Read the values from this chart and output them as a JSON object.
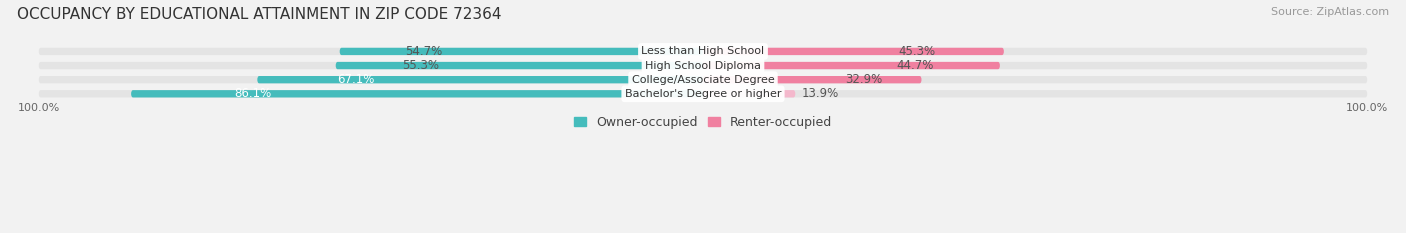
{
  "title": "OCCUPANCY BY EDUCATIONAL ATTAINMENT IN ZIP CODE 72364",
  "source": "Source: ZipAtlas.com",
  "categories": [
    "Less than High School",
    "High School Diploma",
    "College/Associate Degree",
    "Bachelor's Degree or higher"
  ],
  "owner_pct": [
    54.7,
    55.3,
    67.1,
    86.1
  ],
  "renter_pct": [
    45.3,
    44.7,
    32.9,
    13.9
  ],
  "owner_color": "#45BCBC",
  "renter_colors": [
    "#F080A0",
    "#F080A0",
    "#F080A0",
    "#F4B8CC"
  ],
  "bg_color": "#F2F2F2",
  "bar_bg_color": "#E4E4E4",
  "title_fontsize": 11,
  "label_fontsize": 8.5,
  "legend_fontsize": 9,
  "source_fontsize": 8,
  "owner_label_color": [
    "#555555",
    "#555555",
    "#ffffff",
    "#ffffff"
  ],
  "renter_label_color": [
    "#555555",
    "#555555",
    "#555555",
    "#555555"
  ]
}
